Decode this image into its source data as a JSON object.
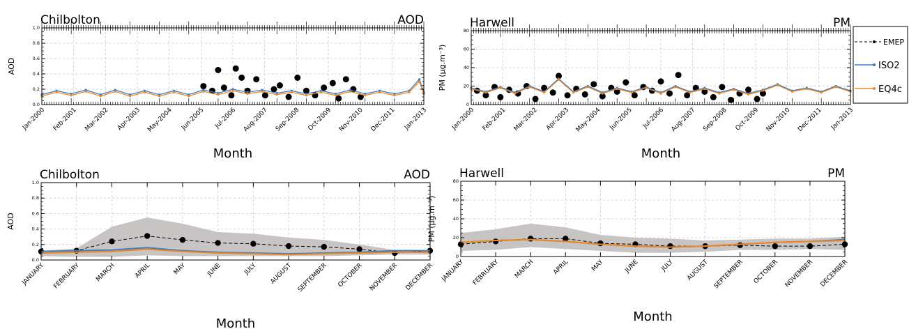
{
  "chart_data": [
    {
      "id": "p1",
      "type": "line",
      "site": "Chilbolton",
      "variable": "AOD",
      "xlabel": "Month",
      "ylabel": "AOD",
      "ylim": [
        0,
        1.0
      ],
      "yticks": [
        0.0,
        0.2,
        0.4,
        0.6,
        0.8,
        1.0
      ],
      "xlim": [
        2000.0,
        2013.0
      ],
      "xticks": [
        "Jan-2000",
        "Feb-2001",
        "Mar-2002",
        "Apr-2003",
        "May-2004",
        "Jun-2005",
        "Jul-2006",
        "Aug-2007",
        "Sep-2008",
        "Oct-2009",
        "Nov-2010",
        "Dec-2011",
        "Jan-2013"
      ],
      "grid": true,
      "series": [
        {
          "name": "EMEP",
          "style": "dashed-black-dots",
          "x": [
            2005.5,
            2005.8,
            2006.0,
            2006.2,
            2006.45,
            2006.6,
            2006.8,
            2007.0,
            2007.3,
            2007.6,
            2007.9,
            2008.1,
            2008.4,
            2008.7,
            2009.0,
            2009.3,
            2009.6,
            2009.9,
            2010.1,
            2010.35,
            2010.6,
            2010.85
          ],
          "y": [
            0.24,
            0.18,
            0.45,
            0.22,
            0.12,
            0.47,
            0.35,
            0.18,
            0.33,
            0.12,
            0.2,
            0.25,
            0.1,
            0.35,
            0.18,
            0.12,
            0.22,
            0.28,
            0.08,
            0.33,
            0.2,
            0.1
          ]
        },
        {
          "name": "ISO2",
          "style": "blue-line",
          "x": [
            2000.0,
            2000.5,
            2001.0,
            2001.5,
            2002.0,
            2002.5,
            2003.0,
            2003.5,
            2004.0,
            2004.5,
            2005.0,
            2005.5,
            2006.0,
            2006.5,
            2007.0,
            2007.5,
            2008.0,
            2008.5,
            2009.0,
            2009.5,
            2010.0,
            2010.5,
            2011.0,
            2011.5,
            2012.0,
            2012.5,
            2012.85,
            2013.0
          ],
          "y": [
            0.13,
            0.18,
            0.14,
            0.19,
            0.13,
            0.19,
            0.13,
            0.18,
            0.13,
            0.18,
            0.13,
            0.19,
            0.15,
            0.2,
            0.16,
            0.19,
            0.15,
            0.18,
            0.14,
            0.18,
            0.14,
            0.19,
            0.14,
            0.18,
            0.14,
            0.18,
            0.33,
            0.16
          ]
        },
        {
          "name": "EQ4c",
          "style": "orange-line",
          "x": [
            2000.0,
            2000.5,
            2001.0,
            2001.5,
            2002.0,
            2002.5,
            2003.0,
            2003.5,
            2004.0,
            2004.5,
            2005.0,
            2005.5,
            2006.0,
            2006.5,
            2007.0,
            2007.5,
            2008.0,
            2008.5,
            2009.0,
            2009.5,
            2010.0,
            2010.5,
            2011.0,
            2011.5,
            2012.0,
            2012.5,
            2012.85,
            2013.0
          ],
          "y": [
            0.11,
            0.16,
            0.12,
            0.17,
            0.11,
            0.17,
            0.11,
            0.16,
            0.11,
            0.16,
            0.11,
            0.17,
            0.13,
            0.18,
            0.14,
            0.17,
            0.13,
            0.16,
            0.12,
            0.16,
            0.12,
            0.17,
            0.12,
            0.16,
            0.12,
            0.16,
            0.3,
            0.14
          ]
        }
      ]
    },
    {
      "id": "p2",
      "type": "line",
      "site": "Harwell",
      "variable": "PM",
      "xlabel": "Month",
      "ylabel": "PM (μg.m⁻³)",
      "ylim": [
        0,
        80
      ],
      "yticks": [
        0,
        20,
        40,
        60,
        80
      ],
      "xlim": [
        2000.0,
        2013.0
      ],
      "xticks": [
        "Jan-2000",
        "Feb-2001",
        "Mar-2002",
        "Apr-2003",
        "May-2004",
        "Jun-2005",
        "Jul-2006",
        "Aug-2007",
        "Sep-2008",
        "Oct-2009",
        "Nov-2010",
        "Dec-2011",
        "Jan-2013"
      ],
      "grid": true,
      "legend": {
        "position": "right",
        "entries": [
          "EMEP",
          "ISO2",
          "EQ4c"
        ]
      },
      "series": [
        {
          "name": "EMEP",
          "style": "dashed-black-dots",
          "x": [
            2000.2,
            2000.5,
            2000.8,
            2001.0,
            2001.3,
            2001.6,
            2001.9,
            2002.2,
            2002.5,
            2002.8,
            2003.0,
            2003.3,
            2003.6,
            2003.9,
            2004.2,
            2004.5,
            2004.8,
            2005.0,
            2005.3,
            2005.6,
            2005.9,
            2006.2,
            2006.5,
            2006.8,
            2007.1,
            2007.4,
            2007.7,
            2008.0,
            2008.3,
            2008.6,
            2008.9,
            2009.2,
            2009.5,
            2009.8,
            2010.0
          ],
          "y": [
            15,
            10,
            19,
            8,
            16,
            12,
            20,
            6,
            18,
            13,
            31,
            10,
            17,
            11,
            22,
            9,
            18,
            14,
            24,
            10,
            19,
            15,
            25,
            12,
            32,
            10,
            18,
            14,
            8,
            19,
            5,
            12,
            16,
            6,
            12
          ]
        },
        {
          "name": "ISO2",
          "style": "blue-line",
          "x": [
            2000.0,
            2000.5,
            2001.0,
            2001.5,
            2002.0,
            2002.5,
            2003.0,
            2003.5,
            2004.0,
            2004.5,
            2005.0,
            2005.5,
            2006.0,
            2006.5,
            2007.0,
            2007.5,
            2008.0,
            2008.5,
            2009.0,
            2009.5,
            2010.0,
            2010.5,
            2011.0,
            2011.5,
            2012.0,
            2012.5,
            2013.0
          ],
          "y": [
            18,
            14,
            19,
            13,
            20,
            14,
            28,
            14,
            20,
            13,
            18,
            14,
            19,
            13,
            20,
            14,
            18,
            13,
            17,
            12,
            16,
            22,
            15,
            18,
            14,
            20,
            15
          ]
        },
        {
          "name": "EQ4c",
          "style": "orange-line",
          "x": [
            2000.0,
            2000.5,
            2001.0,
            2001.5,
            2002.0,
            2002.5,
            2003.0,
            2003.5,
            2004.0,
            2004.5,
            2005.0,
            2005.5,
            2006.0,
            2006.5,
            2007.0,
            2007.5,
            2008.0,
            2008.5,
            2009.0,
            2009.5,
            2010.0,
            2010.5,
            2011.0,
            2011.5,
            2012.0,
            2012.5,
            2013.0
          ],
          "y": [
            17,
            13,
            18,
            12,
            19,
            13,
            27,
            13,
            19,
            12,
            17,
            13,
            18,
            12,
            19,
            13,
            17,
            12,
            16,
            11,
            15,
            21,
            14,
            17,
            13,
            19,
            14
          ]
        }
      ]
    },
    {
      "id": "p3",
      "type": "line",
      "site": "Chilbolton",
      "variable": "AOD",
      "xlabel": "Month",
      "ylabel": "AOD",
      "ylim": [
        0,
        1.0
      ],
      "yticks": [
        0.0,
        0.2,
        0.4,
        0.6,
        0.8,
        1.0
      ],
      "categories": [
        "JANUARY",
        "FEBRUARY",
        "MARCH",
        "APRIL",
        "MAY",
        "JUNE",
        "JULY",
        "AUGUST",
        "SEPTEMBER",
        "OCTOBER",
        "NOVEMBER",
        "DECEMBER"
      ],
      "grid": true,
      "band": {
        "upper": [
          0.12,
          0.15,
          0.43,
          0.55,
          0.47,
          0.36,
          0.34,
          0.29,
          0.26,
          0.2,
          0.13,
          0.13
        ],
        "lower": [
          0.05,
          0.04,
          0.04,
          0.06,
          0.05,
          0.05,
          0.05,
          0.05,
          0.05,
          0.06,
          0.07,
          0.07
        ]
      },
      "series": [
        {
          "name": "EMEP",
          "style": "dashed-black-dots",
          "values": [
            0.11,
            0.12,
            0.24,
            0.31,
            0.26,
            0.22,
            0.21,
            0.18,
            0.17,
            0.14,
            0.09,
            0.12
          ]
        },
        {
          "name": "ISO2",
          "style": "blue-line",
          "values": [
            0.11,
            0.12,
            0.13,
            0.16,
            0.12,
            0.1,
            0.09,
            0.08,
            0.09,
            0.1,
            0.12,
            0.12
          ]
        },
        {
          "name": "EQ4c",
          "style": "orange-line",
          "values": [
            0.09,
            0.1,
            0.11,
            0.14,
            0.11,
            0.09,
            0.08,
            0.07,
            0.08,
            0.09,
            0.1,
            0.1
          ]
        }
      ]
    },
    {
      "id": "p4",
      "type": "line",
      "site": "Harwell",
      "variable": "PM",
      "xlabel": "Month",
      "ylabel": "PM (μg.m⁻³)",
      "ylim": [
        0,
        80
      ],
      "yticks": [
        0,
        20,
        40,
        60,
        80
      ],
      "categories": [
        "JANUARY",
        "FEBRUARY",
        "MARCH",
        "APRIL",
        "MAY",
        "JUNE",
        "JULY",
        "AUGUST",
        "SEPTEMBER",
        "OCTOBER",
        "NOVEMBER",
        "DECEMBER"
      ],
      "grid": true,
      "band": {
        "upper": [
          25,
          29,
          35,
          31,
          23,
          20,
          19,
          17,
          18,
          19,
          19,
          21
        ],
        "lower": [
          6,
          7,
          10,
          8,
          6,
          4,
          4,
          5,
          7,
          7,
          8,
          7
        ]
      },
      "series": [
        {
          "name": "EMEP",
          "style": "dashed-black-dots",
          "values": [
            13,
            16,
            19,
            19,
            14,
            13,
            11,
            11,
            12,
            11,
            11,
            13
          ]
        },
        {
          "name": "ISO2",
          "style": "blue-line",
          "values": [
            15,
            17,
            18,
            16,
            13,
            11,
            10,
            11,
            13,
            15,
            16,
            18
          ]
        },
        {
          "name": "EQ4c",
          "style": "orange-line",
          "values": [
            15,
            17,
            18,
            16,
            13,
            11,
            10,
            11,
            13,
            15,
            16,
            17
          ]
        }
      ]
    }
  ],
  "colors": {
    "EMEP": "#000000",
    "ISO2": "#3a7dc9",
    "EQ4c": "#f0861e",
    "band": "#c8c4c4",
    "grid": "#c8c8c8"
  }
}
